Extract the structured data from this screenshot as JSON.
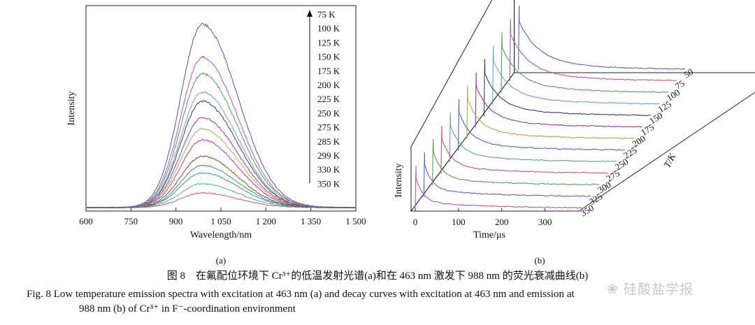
{
  "chart_data": [
    {
      "type": "line",
      "panel_label": "(a)",
      "xlabel": "Wavelength/nm",
      "ylabel": "Intensity",
      "xlim": [
        600,
        1500
      ],
      "x_ticks": [
        "600",
        "750",
        "900",
        "1 050",
        "1 200",
        "1 350",
        "1 500"
      ],
      "x_tick_values": [
        600,
        750,
        900,
        1050,
        1200,
        1350,
        1500
      ],
      "peak_x": 988,
      "y_ticks_shown": false,
      "legend_placement": "top-right",
      "legend_arrow": "up",
      "series": [
        {
          "name": "75 K",
          "peak": 1.0,
          "color": "#4a5aa8"
        },
        {
          "name": "100 K",
          "peak": 0.82,
          "color": "#c250a8"
        },
        {
          "name": "125 K",
          "peak": 0.73,
          "color": "#4f9a4f"
        },
        {
          "name": "150 K",
          "peak": 0.63,
          "color": "#6e9ec8"
        },
        {
          "name": "175 K",
          "peak": 0.58,
          "color": "#3a3a5a"
        },
        {
          "name": "200 K",
          "peak": 0.49,
          "color": "#9a3a9a"
        },
        {
          "name": "225 K",
          "peak": 0.43,
          "color": "#b0b048"
        },
        {
          "name": "250 K",
          "peak": 0.37,
          "color": "#d0309a"
        },
        {
          "name": "275 K",
          "peak": 0.28,
          "color": "#8a4a2a"
        },
        {
          "name": "285 K",
          "peak": 0.23,
          "color": "#3aa04a"
        },
        {
          "name": "299 K",
          "peak": 0.19,
          "color": "#3a8ad0"
        },
        {
          "name": "330 K",
          "peak": 0.13,
          "color": "#50b0b0"
        },
        {
          "name": "350 K",
          "peak": 0.08,
          "color": "#d06060"
        }
      ]
    },
    {
      "type": "line",
      "panel_label": "(b)",
      "xlabel": "Time/μs",
      "ylabel": "Intensity",
      "zlabel": "T/K",
      "x_ticks": [
        "0",
        "100",
        "200",
        "300"
      ],
      "x_tick_values": [
        0,
        100,
        200,
        300
      ],
      "xlim": [
        0,
        380
      ],
      "z_ticks": [
        "50",
        "75",
        "100",
        "125",
        "150",
        "175",
        "200",
        "225",
        "250",
        "275",
        "300",
        "325",
        "350"
      ],
      "decay_series_temperatures": [
        50,
        75,
        100,
        125,
        150,
        175,
        200,
        225,
        250,
        275,
        300,
        325,
        350
      ],
      "decay_colors": [
        "#5a60c0",
        "#c050b0",
        "#50a050",
        "#6aa0c8",
        "#3a3a5a",
        "#9a3a9a",
        "#a8a848",
        "#3a70c8",
        "#5aa0a0",
        "#d05080",
        "#50a050",
        "#5a60c0",
        "#c050b0"
      ]
    }
  ],
  "caption": {
    "cn": "图 8　在氟配位环境下 Cr³⁺的低温发射光谱(a)和在 463 nm 激发下 988 nm 的荧光衰减曲线(b)",
    "en_line1": "Fig. 8   Low temperature emission spectra with excitation at 463 nm (a) and decay curves with excitation at 463 nm and emission at",
    "en_line2": "988 nm (b) of Cr³⁺ in F⁻-coordination environment"
  },
  "watermark": "硅酸盐学报"
}
